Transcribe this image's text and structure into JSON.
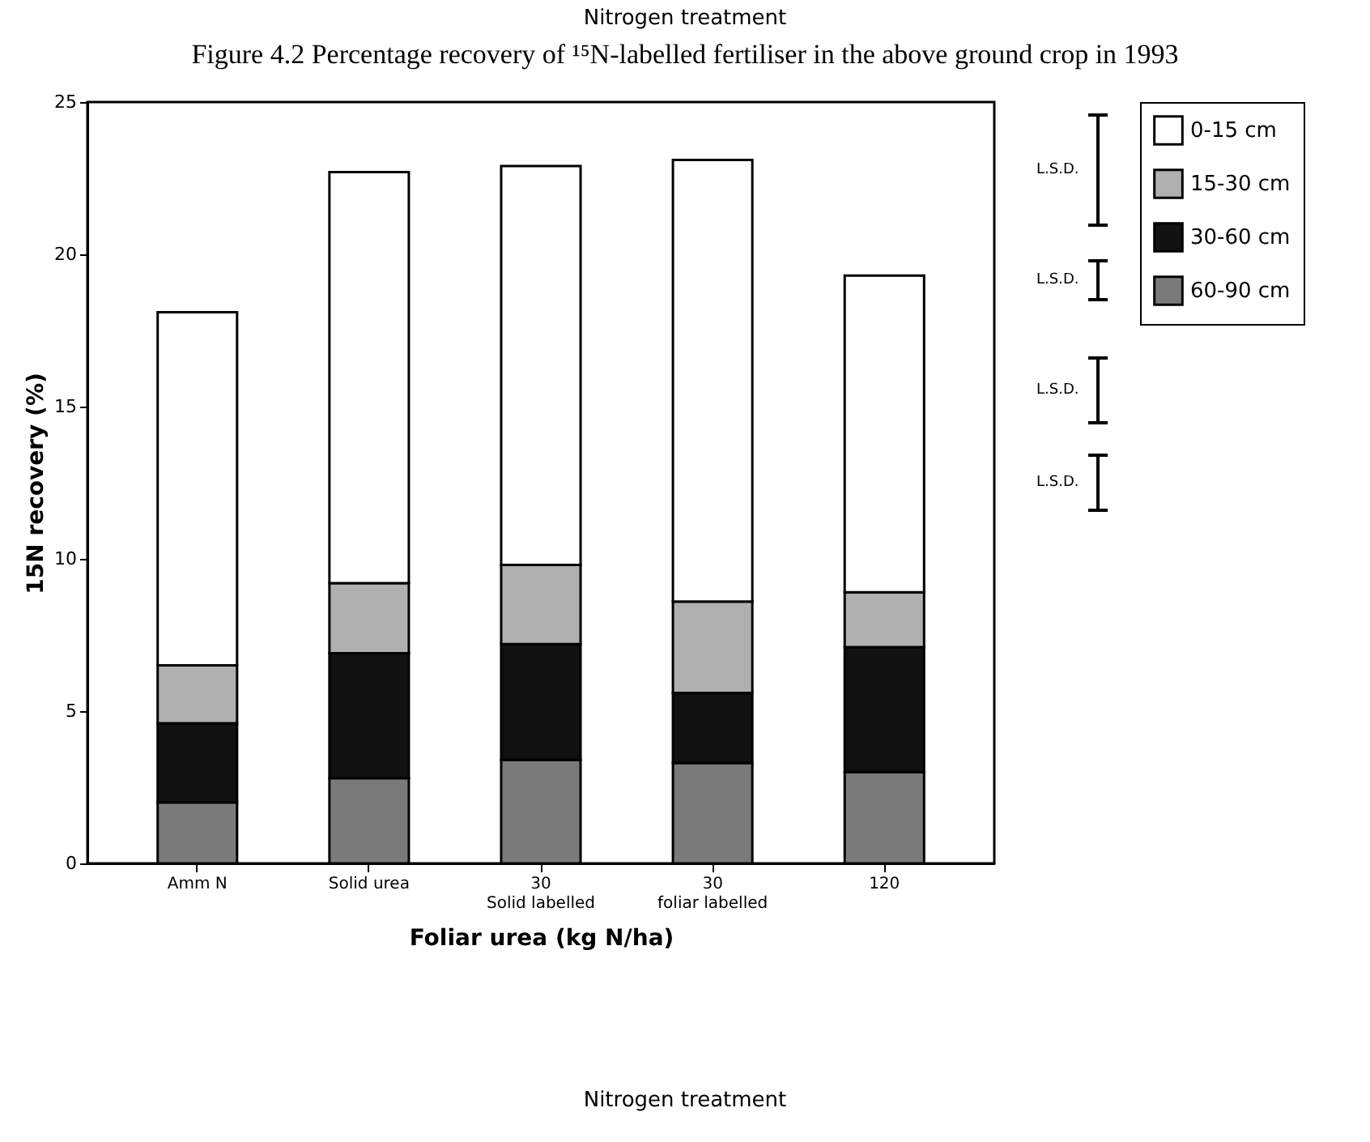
{
  "chart_data": {
    "type": "bar",
    "title": "Figure 4.2 Percentage recovery of ¹⁵N-labelled fertiliser in the above ground crop in 1993",
    "xlabel": "Foliar urea (kg N/ha)",
    "ylabel": "15N recovery (%)",
    "categories": [
      "Amm N",
      "Solid urea",
      "30\nSolid labelled",
      "30\nfoliar labelled",
      "120"
    ],
    "stacked": true,
    "series": [
      {
        "name": "60-90 cm",
        "color": "#7a7a7a",
        "values": [
          2.0,
          2.8,
          3.4,
          3.3,
          3.0
        ]
      },
      {
        "name": "30-60 cm",
        "color": "#111111",
        "values": [
          2.6,
          4.1,
          3.8,
          2.3,
          4.1
        ]
      },
      {
        "name": "15-30 cm",
        "color": "#b0b0b0",
        "values": [
          1.9,
          2.3,
          2.6,
          3.0,
          1.8
        ]
      },
      {
        "name": "0-15 cm",
        "color": "#ffffff",
        "values": [
          11.6,
          13.5,
          13.1,
          14.5,
          10.4
        ]
      }
    ],
    "ylim": [
      0,
      25
    ],
    "yticks": [
      0,
      5,
      10,
      15,
      20,
      25
    ],
    "grid": false,
    "legend": "top right",
    "annotations": [
      "Nitrogen treatment",
      "L.S.D.",
      "L.S.D.",
      "L.S.D.",
      "L.S.D.",
      "Nitrogen treatment"
    ]
  }
}
